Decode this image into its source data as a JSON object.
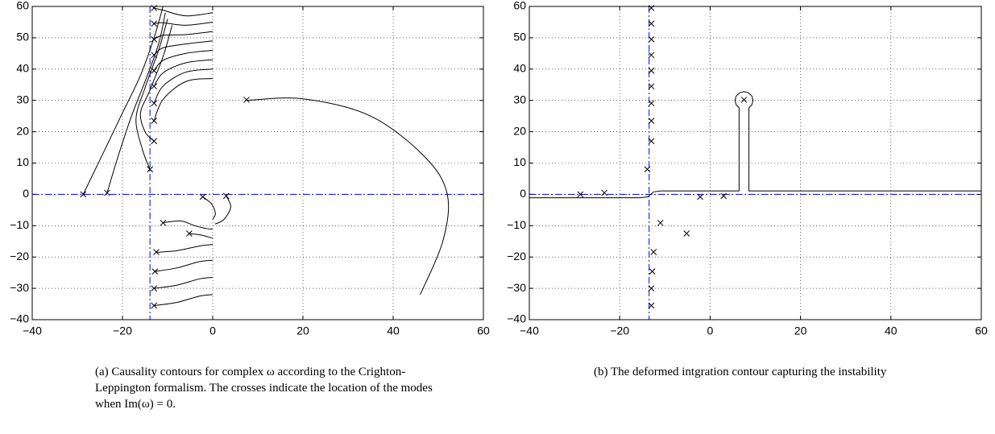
{
  "chart_data": [
    {
      "type": "line",
      "smooth": true,
      "grid": true,
      "color": "#000000",
      "guide_color": "#0000ff",
      "caption": "(a) Causality contours for complex ω according to the Crighton-Leppington formalism. The crosses indicate the location of the modes when Im(ω) = 0.",
      "xlim": [
        -40,
        60
      ],
      "ylim": [
        -40,
        60
      ],
      "xticks": [
        {
          "value": -40,
          "label": "−40"
        },
        {
          "value": -20,
          "label": "−20"
        },
        0,
        20,
        40,
        60
      ],
      "yticks": [
        {
          "value": -40,
          "label": "−40"
        },
        {
          "value": -30,
          "label": "−30"
        },
        {
          "value": -20,
          "label": "−20"
        },
        {
          "value": -10,
          "label": "−10"
        },
        0,
        10,
        20,
        30,
        40,
        50,
        60
      ],
      "guides": {
        "x": -13.9,
        "y": 0
      },
      "modes": {
        "x": [
          -28.7,
          -23.4,
          -13.9,
          -13,
          -13,
          -13,
          -13,
          -13,
          -13,
          -13,
          -13,
          -13,
          -2.2,
          3,
          7.5,
          -11,
          -5.2,
          -12.5,
          -12.8,
          -13,
          -13
        ],
        "y": [
          0,
          0.5,
          8,
          17,
          23.5,
          29.1,
          34.5,
          39.5,
          44.5,
          49.5,
          54.5,
          59.5,
          -0.8,
          -0.5,
          30.2,
          -9.1,
          -12.5,
          -18.4,
          -24.6,
          -30,
          -35.5
        ]
      },
      "contours": [
        {
          "x": [
            -11,
            -13,
            -16,
            -20,
            -24,
            -28.7
          ],
          "y": [
            60,
            50,
            38,
            26,
            14,
            0
          ]
        },
        {
          "x": [
            -10.5,
            -12,
            -15,
            -18,
            -21,
            -23.4
          ],
          "y": [
            58,
            48,
            36,
            25,
            12,
            0.5
          ]
        },
        {
          "x": [
            -10,
            -12,
            -15,
            -17,
            -15.5,
            -13.9
          ],
          "y": [
            56,
            46,
            34,
            24,
            14,
            8
          ]
        },
        {
          "x": [
            -9,
            -11,
            -14,
            -16,
            -15,
            -13
          ],
          "y": [
            54,
            44,
            33,
            26,
            20,
            17
          ]
        },
        {
          "x": [
            0,
            -6,
            -11,
            -13
          ],
          "y": [
            37,
            36,
            30.3,
            23.5
          ]
        },
        {
          "x": [
            0,
            -6,
            -11,
            -13
          ],
          "y": [
            40,
            39,
            34.6,
            29.1
          ]
        },
        {
          "x": [
            0,
            -6,
            -11,
            -13
          ],
          "y": [
            43,
            42,
            38.8,
            34.5
          ]
        },
        {
          "x": [
            0,
            -6,
            -11,
            -13
          ],
          "y": [
            46,
            45,
            42.8,
            39.5
          ]
        },
        {
          "x": [
            0,
            -6,
            -11,
            -13
          ],
          "y": [
            49,
            48,
            46.8,
            44.5
          ]
        },
        {
          "x": [
            0,
            -6,
            -11,
            -13
          ],
          "y": [
            52,
            51,
            50.8,
            49.5
          ]
        },
        {
          "x": [
            0,
            -6,
            -11,
            -13
          ],
          "y": [
            55,
            54,
            54.8,
            54.5
          ]
        },
        {
          "x": [
            0,
            -6,
            -11,
            -13
          ],
          "y": [
            58,
            57,
            58.8,
            59.5
          ]
        },
        {
          "x": [
            -11,
            -7,
            -4,
            -1,
            0
          ],
          "y": [
            -9,
            -8.5,
            -10,
            -11,
            -11
          ]
        },
        {
          "x": [
            -5.2,
            -2.5,
            0
          ],
          "y": [
            -12.5,
            -13,
            -14
          ]
        },
        {
          "x": [
            -2.2,
            -0.3,
            0.6,
            0
          ],
          "y": [
            -0.8,
            -3,
            -6,
            -8
          ]
        },
        {
          "x": [
            3,
            4,
            2.5,
            0.5
          ],
          "y": [
            -0.5,
            -4,
            -8,
            -9.5
          ]
        },
        {
          "x": [
            -12.5,
            -8,
            -3,
            0
          ],
          "y": [
            -18.5,
            -18,
            -16.5,
            -16
          ]
        },
        {
          "x": [
            -12.8,
            -8,
            -3,
            0
          ],
          "y": [
            -24.6,
            -23.5,
            -21.5,
            -21
          ]
        },
        {
          "x": [
            -13,
            -8,
            -3,
            0
          ],
          "y": [
            -30,
            -29,
            -27,
            -26.5
          ]
        },
        {
          "x": [
            -13,
            -8,
            -3,
            0
          ],
          "y": [
            -35.5,
            -34.5,
            -32.5,
            -32
          ]
        },
        {
          "x": [
            7.5,
            20,
            35,
            47,
            52,
            51,
            46
          ],
          "y": [
            30,
            30.5,
            25,
            12,
            0,
            -15,
            -32
          ]
        }
      ]
    },
    {
      "type": "line",
      "smooth": false,
      "grid": true,
      "color": "#000000",
      "guide_color": "#0000ff",
      "caption": "(b) The deformed intgration contour capturing the instability",
      "xlim": [
        -40,
        60
      ],
      "ylim": [
        -40,
        60
      ],
      "xticks": [
        {
          "value": -40,
          "label": "−40"
        },
        {
          "value": -20,
          "label": "−20"
        },
        0,
        20,
        40,
        60
      ],
      "yticks": [
        {
          "value": -40,
          "label": "−40"
        },
        {
          "value": -30,
          "label": "−30"
        },
        {
          "value": -20,
          "label": "−20"
        },
        {
          "value": -10,
          "label": "−10"
        },
        0,
        10,
        20,
        30,
        40,
        50,
        60
      ],
      "guides": {
        "x": -13.5,
        "y": 0
      },
      "modes": {
        "x": [
          -28.7,
          -23.4,
          -13.9,
          -13,
          -13,
          -13,
          -13,
          -13,
          -13,
          -13,
          -13,
          -13,
          -2.2,
          3,
          7.5,
          -11,
          -5.2,
          -12.5,
          -12.8,
          -13,
          -13
        ],
        "y": [
          0,
          0.5,
          8,
          17,
          23.5,
          29.1,
          34.5,
          39.5,
          44.5,
          49.5,
          54.5,
          59.5,
          -0.8,
          -0.5,
          30.2,
          -9.1,
          -12.5,
          -18.4,
          -24.6,
          -30,
          -35.5
        ]
      },
      "contours": [
        {
          "x": [
            -40,
            -15.5,
            -13.8,
            -12.5,
            -11,
            6.41,
            6.41,
            5.77,
            5.5,
            5.77,
            6.5,
            7.5,
            8.5,
            9.23,
            9.5,
            9.23,
            8.59,
            8.59,
            60
          ],
          "y": [
            -1.1,
            -1.1,
            -0.8,
            0.8,
            1.1,
            1.1,
            27.65,
            28.6,
            30,
            31.4,
            32.42,
            32.8,
            32.42,
            31.4,
            30,
            28.6,
            27.65,
            1.1,
            1.1
          ]
        }
      ]
    }
  ]
}
